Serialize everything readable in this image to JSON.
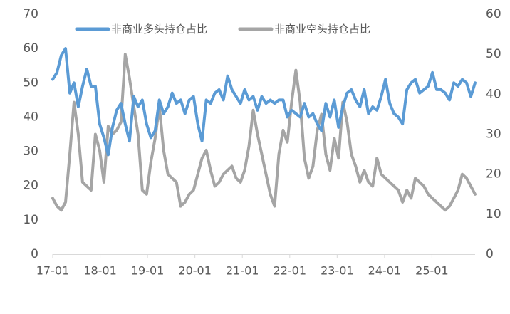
{
  "chart_data": {
    "type": "line",
    "title": "",
    "xlabel": "",
    "ylabel": "",
    "x_ticks": [
      "17-01",
      "18-01",
      "19-01",
      "20-01",
      "21-01",
      "22-01",
      "23-01",
      "24-01",
      "25-01"
    ],
    "x_range": [
      0,
      99
    ],
    "y_left": {
      "lim": [
        0,
        70
      ],
      "ticks": [
        0,
        10,
        20,
        30,
        40,
        50,
        60,
        70
      ]
    },
    "y_right": {
      "lim": [
        0,
        60
      ],
      "ticks": [
        0,
        10,
        20,
        30,
        40,
        50,
        60
      ]
    },
    "legend": {
      "position": "top"
    },
    "grid": false,
    "series": [
      {
        "name": "非商业多头持仓占比",
        "axis": "left",
        "color": "#5B9BD5",
        "x": [
          0,
          1,
          2,
          3,
          4,
          5,
          6,
          7,
          8,
          9,
          10,
          11,
          12,
          13,
          14,
          15,
          16,
          17,
          18,
          19,
          20,
          21,
          22,
          23,
          24,
          25,
          26,
          27,
          28,
          29,
          30,
          31,
          32,
          33,
          34,
          35,
          36,
          37,
          38,
          39,
          40,
          41,
          42,
          43,
          44,
          45,
          46,
          47,
          48,
          49,
          50,
          51,
          52,
          53,
          54,
          55,
          56,
          57,
          58,
          59,
          60,
          61,
          62,
          63,
          64,
          65,
          66,
          67,
          68,
          69,
          70,
          71,
          72,
          73,
          74,
          75,
          76,
          77,
          78,
          79,
          80,
          81,
          82,
          83,
          84,
          85,
          86,
          87,
          88,
          89,
          90,
          91,
          92,
          93,
          94,
          95,
          96,
          97,
          98,
          99
        ],
        "values": [
          51,
          53,
          58,
          60,
          47,
          50,
          43,
          49,
          54,
          49,
          49,
          38,
          34,
          29,
          37,
          42,
          44,
          38,
          33,
          46,
          43,
          45,
          38,
          34,
          36,
          45,
          41,
          43,
          47,
          44,
          45,
          41,
          45,
          46,
          38,
          33,
          45,
          44,
          47,
          48,
          45,
          52,
          48,
          46,
          44,
          48,
          45,
          46,
          42,
          46,
          44,
          45,
          44,
          45,
          45,
          40,
          42,
          41,
          40,
          44,
          40,
          41,
          38,
          36,
          44,
          40,
          45,
          37,
          43,
          47,
          48,
          45,
          43,
          48,
          41,
          43,
          42,
          46,
          51,
          44,
          41,
          40,
          38,
          48,
          50,
          51,
          47,
          48,
          49,
          53,
          48,
          48,
          47,
          45,
          50,
          49,
          51,
          50,
          46,
          50
        ]
      },
      {
        "name": "非商业空头持仓占比",
        "axis": "right",
        "color": "#A5A5A5",
        "x": [
          0,
          1,
          2,
          3,
          4,
          5,
          6,
          7,
          8,
          9,
          10,
          11,
          12,
          13,
          14,
          15,
          16,
          17,
          18,
          19,
          20,
          21,
          22,
          23,
          24,
          25,
          26,
          27,
          28,
          29,
          30,
          31,
          32,
          33,
          34,
          35,
          36,
          37,
          38,
          39,
          40,
          41,
          42,
          43,
          44,
          45,
          46,
          47,
          48,
          49,
          50,
          51,
          52,
          53,
          54,
          55,
          56,
          57,
          58,
          59,
          60,
          61,
          62,
          63,
          64,
          65,
          66,
          67,
          68,
          69,
          70,
          71,
          72,
          73,
          74,
          75,
          76,
          77,
          78,
          79,
          80,
          81,
          82,
          83,
          84,
          85,
          86,
          87,
          88,
          89,
          90,
          91,
          92,
          93,
          94,
          95,
          96,
          97,
          98,
          99
        ],
        "values": [
          14,
          12,
          11,
          13,
          25,
          38,
          30,
          18,
          17,
          16,
          30,
          26,
          18,
          32,
          30,
          31,
          33,
          50,
          44,
          37,
          30,
          16,
          15,
          23,
          29,
          37,
          26,
          20,
          19,
          18,
          12,
          13,
          15,
          16,
          20,
          24,
          26,
          21,
          17,
          18,
          20,
          21,
          22,
          19,
          18,
          21,
          27,
          36,
          30,
          25,
          20,
          15,
          12,
          25,
          31,
          28,
          38,
          46,
          38,
          24,
          19,
          22,
          31,
          35,
          25,
          21,
          29,
          24,
          38,
          33,
          25,
          22,
          18,
          21,
          18,
          17,
          24,
          20,
          19,
          18,
          17,
          16,
          13,
          16,
          14,
          19,
          18,
          17,
          15,
          14,
          13,
          12,
          11,
          12,
          14,
          16,
          20,
          19,
          17,
          15
        ]
      }
    ]
  }
}
